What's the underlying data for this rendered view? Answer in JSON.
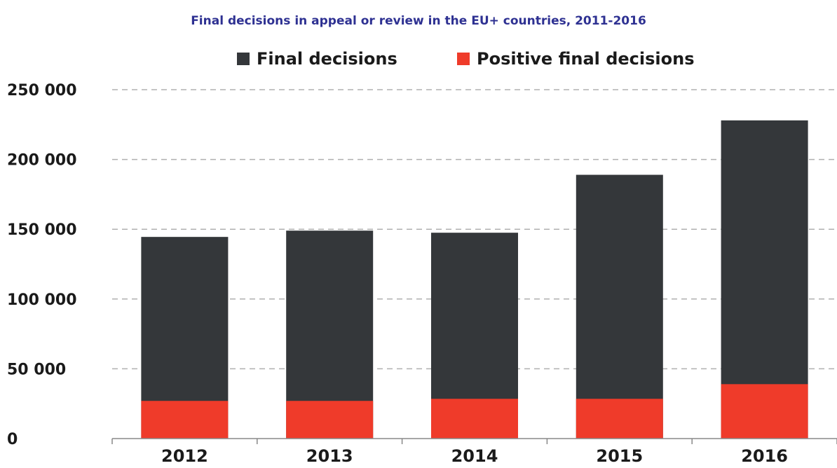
{
  "chart_data": {
    "type": "bar",
    "title": "Final decisions in appeal or review in the EU+ countries, 2011-2016",
    "categories": [
      "2012",
      "2013",
      "2014",
      "2015",
      "2016"
    ],
    "series": [
      {
        "name": "Final decisions",
        "color": "#34373a",
        "values": [
          144500,
          149000,
          147500,
          189000,
          228000
        ]
      },
      {
        "name": "Positive final decisions",
        "color": "#ef3b2a",
        "values": [
          27000,
          27000,
          28500,
          28500,
          39000
        ]
      }
    ],
    "ylim": [
      0,
      250000
    ],
    "yticks": [
      0,
      {
        "value": 50000,
        "label": "50 000"
      },
      {
        "value": 100000,
        "label": "100 000"
      },
      {
        "value": 150000,
        "label": "150 000"
      },
      {
        "value": 200000,
        "label": "200 000"
      },
      {
        "value": 250000,
        "label": "250 000"
      }
    ],
    "grid": true,
    "legend": "top"
  }
}
